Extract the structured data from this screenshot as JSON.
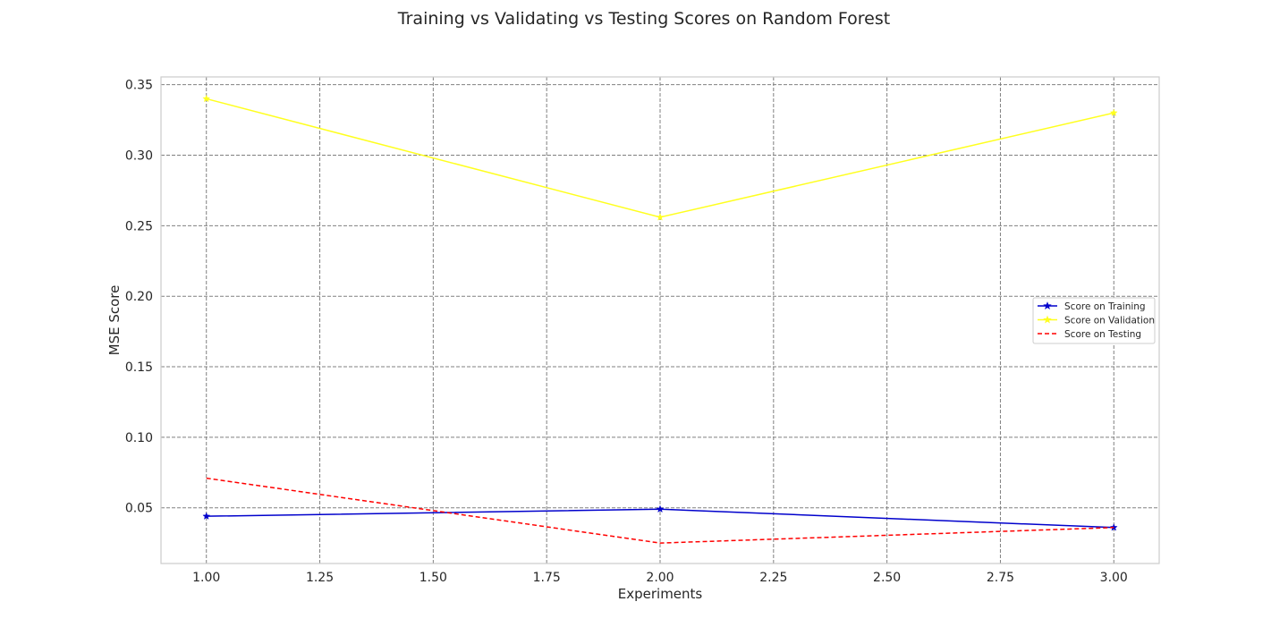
{
  "chart_data": {
    "type": "line",
    "title": "Training vs Validating vs Testing Scores on Random Forest",
    "xlabel": "Experiments",
    "ylabel": "MSE Score",
    "x": [
      1.0,
      2.0,
      3.0
    ],
    "xlim": [
      0.9,
      3.1
    ],
    "ylim": [
      0.0105,
      0.3555
    ],
    "xticks": [
      "1.00",
      "1.25",
      "1.50",
      "1.75",
      "2.00",
      "2.25",
      "2.50",
      "2.75",
      "3.00"
    ],
    "yticks": [
      "0.05",
      "0.10",
      "0.15",
      "0.20",
      "0.25",
      "0.30",
      "0.35"
    ],
    "grid": true,
    "legend_position": "center-right",
    "series": [
      {
        "name": "Score on Training",
        "values": [
          0.044,
          0.049,
          0.036
        ],
        "color": "#0000cc",
        "style": "solid",
        "marker": "star"
      },
      {
        "name": "Score on Validation",
        "values": [
          0.34,
          0.256,
          0.33
        ],
        "color": "#ffff1f",
        "style": "solid",
        "marker": "star"
      },
      {
        "name": "Score on Testing",
        "values": [
          0.071,
          0.025,
          0.036
        ],
        "color": "#ff0000",
        "style": "dashed",
        "marker": "none"
      }
    ]
  }
}
